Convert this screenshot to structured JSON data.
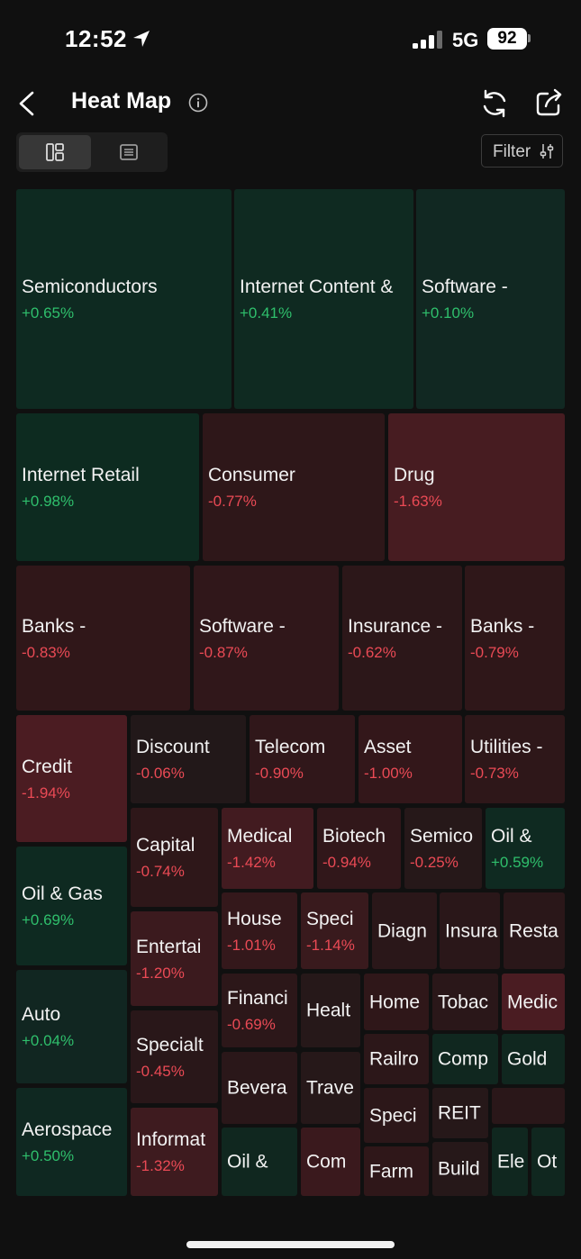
{
  "status_bar": {
    "time": "12:52",
    "network": "5G",
    "battery": "92"
  },
  "header": {
    "title": "Heat Map"
  },
  "toolbar": {
    "filter_label": "Filter"
  },
  "colors": {
    "accent_positive": "#2fbf6c",
    "accent_negative": "#ea4a55",
    "background": "#101010"
  },
  "tiles": [
    {
      "name": "Semiconductors",
      "change": "+0.65%",
      "color": "#0e2a21"
    },
    {
      "name": "Internet Content &",
      "change": "+0.41%",
      "color": "#0f2a21"
    },
    {
      "name": "Software -",
      "change": "+0.10%",
      "color": "#112822"
    },
    {
      "name": "Internet Retail",
      "change": "+0.98%",
      "color": "#0d2b20"
    },
    {
      "name": "Consumer",
      "change": "-0.77%",
      "color": "#2e1719"
    },
    {
      "name": "Drug",
      "change": "-1.63%",
      "color": "#471c21"
    },
    {
      "name": "Banks -",
      "change": "-0.83%",
      "color": "#301719"
    },
    {
      "name": "Software -",
      "change": "-0.87%",
      "color": "#30171a"
    },
    {
      "name": "Insurance -",
      "change": "-0.62%",
      "color": "#2c1719"
    },
    {
      "name": "Banks -",
      "change": "-0.79%",
      "color": "#2f1719"
    },
    {
      "name": "Credit",
      "change": "-1.94%",
      "color": "#4b1c22"
    },
    {
      "name": "Discount",
      "change": "-0.06%",
      "color": "#221819"
    },
    {
      "name": "Telecom",
      "change": "-0.90%",
      "color": "#30171a"
    },
    {
      "name": "Asset",
      "change": "-1.00%",
      "color": "#33171a"
    },
    {
      "name": "Utilities -",
      "change": "-0.73%",
      "color": "#2e1719"
    },
    {
      "name": "Oil & Gas",
      "change": "+0.69%",
      "color": "#0e2a21"
    },
    {
      "name": "Capital",
      "change": "-0.74%",
      "color": "#2e1719"
    },
    {
      "name": "Medical",
      "change": "-1.42%",
      "color": "#421b20"
    },
    {
      "name": "Biotech",
      "change": "-0.94%",
      "color": "#31171a"
    },
    {
      "name": "Semico",
      "change": "-0.25%",
      "color": "#261819"
    },
    {
      "name": "Oil &",
      "change": "+0.59%",
      "color": "#0f2a21"
    },
    {
      "name": "Entertai",
      "change": "-1.20%",
      "color": "#3b1a1e"
    },
    {
      "name": "House",
      "change": "-1.01%",
      "color": "#34181b"
    },
    {
      "name": "Speci",
      "change": "-1.14%",
      "color": "#391a1d"
    },
    {
      "name": "Diagn",
      "change": "",
      "color": "#2a1719"
    },
    {
      "name": "Insura",
      "change": "",
      "color": "#2a1719"
    },
    {
      "name": "Resta",
      "change": "",
      "color": "#2a1719"
    },
    {
      "name": "Auto",
      "change": "+0.04%",
      "color": "#112621"
    },
    {
      "name": "Financi",
      "change": "-0.69%",
      "color": "#2c1719"
    },
    {
      "name": "Healt",
      "change": "",
      "color": "#261819"
    },
    {
      "name": "Home",
      "change": "",
      "color": "#2f1719"
    },
    {
      "name": "Tobac",
      "change": "",
      "color": "#2a1719"
    },
    {
      "name": "Medic",
      "change": "",
      "color": "#4a1c22"
    },
    {
      "name": "Specialt",
      "change": "-0.45%",
      "color": "#291719"
    },
    {
      "name": "Railro",
      "change": "",
      "color": "#2c1719"
    },
    {
      "name": "Comp",
      "change": "",
      "color": "#10271f"
    },
    {
      "name": "Gold",
      "change": "",
      "color": "#10271f"
    },
    {
      "name": "Aerospace",
      "change": "+0.50%",
      "color": "#0f2821"
    },
    {
      "name": "Bevera",
      "change": "",
      "color": "#2a1719"
    },
    {
      "name": "Trave",
      "change": "",
      "color": "#261819"
    },
    {
      "name": "Speci",
      "change": "",
      "color": "#2c1719"
    },
    {
      "name": "REIT",
      "change": "",
      "color": "#261819"
    },
    {
      "name": "",
      "change": "",
      "color": "#2a1719"
    },
    {
      "name": "Informat",
      "change": "-1.32%",
      "color": "#3e1b1f"
    },
    {
      "name": "Oil &",
      "change": "",
      "color": "#10271f"
    },
    {
      "name": "Com",
      "change": "",
      "color": "#3a191d"
    },
    {
      "name": "Farm",
      "change": "",
      "color": "#2f1719"
    },
    {
      "name": "Build",
      "change": "",
      "color": "#261819"
    },
    {
      "name": "Ele",
      "change": "",
      "color": "#10271f"
    },
    {
      "name": "Ot",
      "change": "",
      "color": "#10271f"
    }
  ]
}
